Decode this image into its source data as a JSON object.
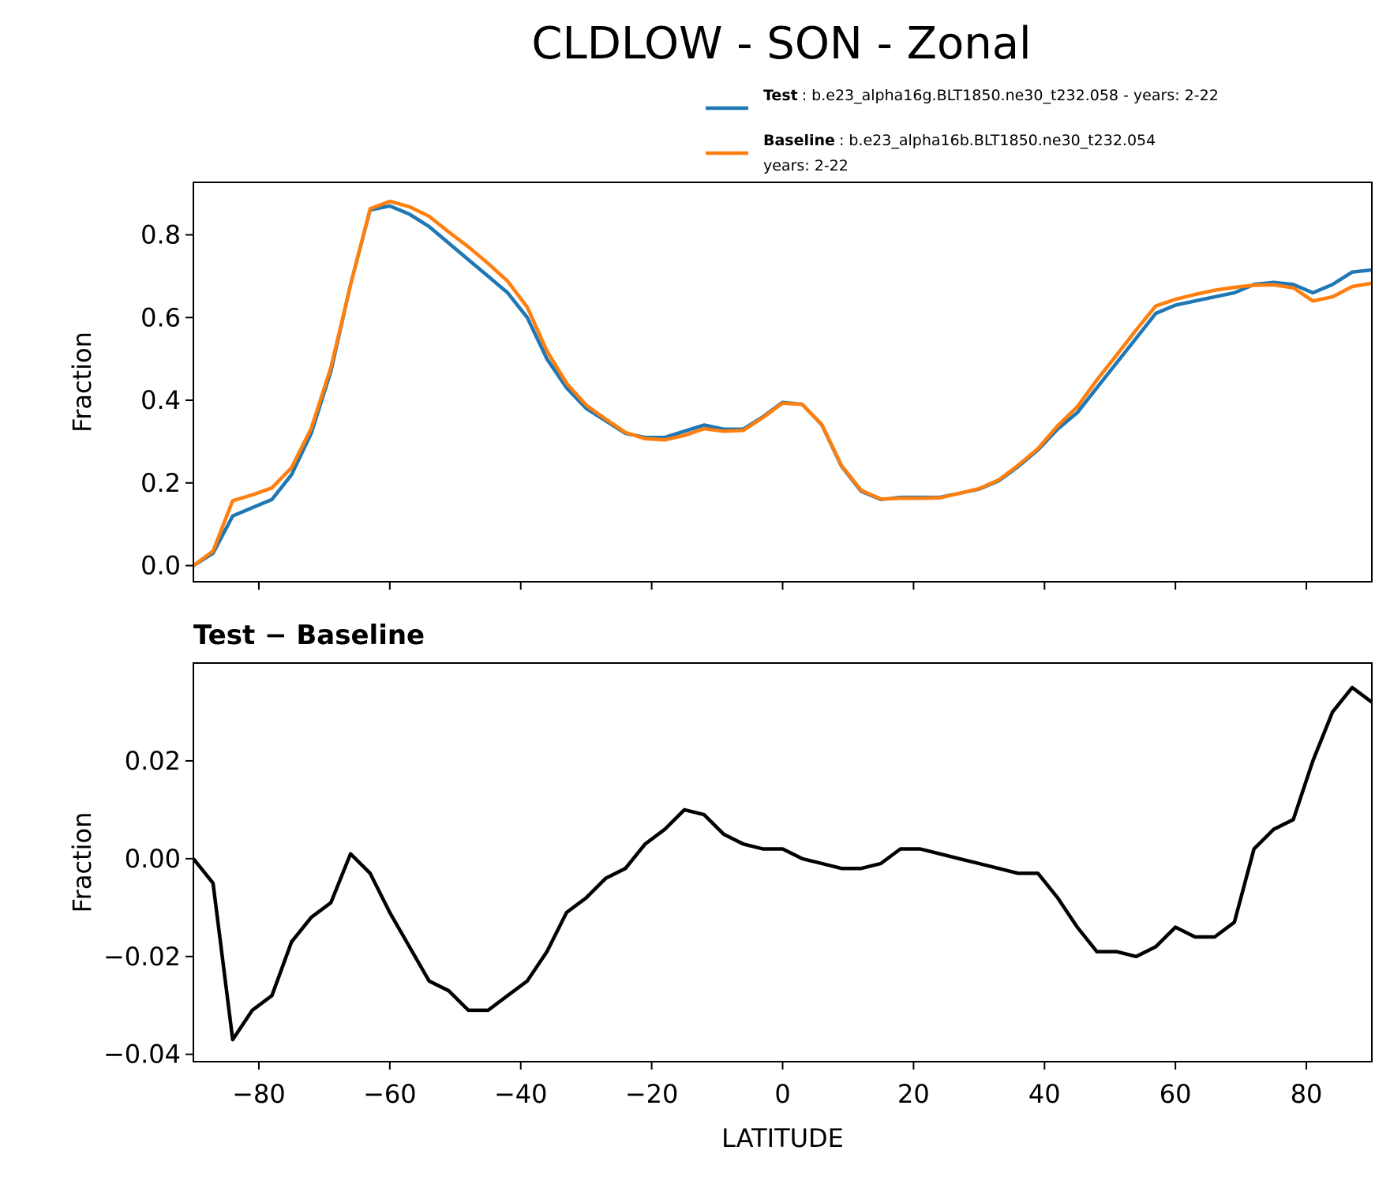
{
  "title": "CLDLOW - SON - Zonal",
  "chart_data": [
    {
      "type": "line",
      "ylabel": "Fraction",
      "show_xtick_labels": false,
      "x": [
        -90,
        -87,
        -84,
        -81,
        -78,
        -75,
        -72,
        -69,
        -66,
        -63,
        -60,
        -57,
        -54,
        -51,
        -48,
        -45,
        -42,
        -39,
        -36,
        -33,
        -30,
        -27,
        -24,
        -21,
        -18,
        -15,
        -12,
        -9,
        -6,
        -3,
        0,
        3,
        6,
        9,
        12,
        15,
        18,
        21,
        24,
        27,
        30,
        33,
        36,
        39,
        42,
        45,
        48,
        51,
        54,
        57,
        60,
        63,
        66,
        69,
        72,
        75,
        78,
        81,
        84,
        87,
        90
      ],
      "series": [
        {
          "name": "Test",
          "legend_lines": [
            ": b.e23_alpha16g.BLT1850.ne30_t232.058 - years: 2-22"
          ],
          "color": "#1f77b4",
          "values": [
            0.0,
            0.03,
            0.12,
            0.14,
            0.16,
            0.22,
            0.32,
            0.47,
            0.68,
            0.86,
            0.87,
            0.85,
            0.82,
            0.78,
            0.74,
            0.7,
            0.66,
            0.6,
            0.5,
            0.43,
            0.38,
            0.35,
            0.32,
            0.31,
            0.31,
            0.325,
            0.34,
            0.33,
            0.33,
            0.36,
            0.395,
            0.39,
            0.34,
            0.24,
            0.18,
            0.16,
            0.165,
            0.165,
            0.165,
            0.175,
            0.185,
            0.205,
            0.24,
            0.28,
            0.33,
            0.37,
            0.43,
            0.49,
            0.55,
            0.61,
            0.63,
            0.64,
            0.65,
            0.66,
            0.68,
            0.685,
            0.68,
            0.66,
            0.68,
            0.71,
            0.715
          ]
        },
        {
          "name": "Baseline",
          "legend_lines": [
            ": b.e23_alpha16b.BLT1850.ne30_t232.054",
            "years: 2-22"
          ],
          "color": "#ff7f0e",
          "values": [
            0.0,
            0.035,
            0.157,
            0.171,
            0.188,
            0.237,
            0.332,
            0.479,
            0.679,
            0.863,
            0.881,
            0.868,
            0.845,
            0.807,
            0.771,
            0.731,
            0.688,
            0.625,
            0.519,
            0.441,
            0.388,
            0.354,
            0.322,
            0.307,
            0.304,
            0.315,
            0.331,
            0.325,
            0.327,
            0.358,
            0.393,
            0.39,
            0.341,
            0.242,
            0.182,
            0.161,
            0.163,
            0.163,
            0.164,
            0.175,
            0.186,
            0.207,
            0.243,
            0.283,
            0.338,
            0.384,
            0.449,
            0.509,
            0.57,
            0.628,
            0.644,
            0.656,
            0.666,
            0.673,
            0.678,
            0.679,
            0.672,
            0.64,
            0.65,
            0.675,
            0.683
          ]
        }
      ],
      "xlim": [
        -90,
        90
      ],
      "xticks": [
        -80,
        -60,
        -40,
        -20,
        0,
        20,
        40,
        60,
        80
      ],
      "ylim": [
        -0.039,
        0.927
      ],
      "yticks": [
        {
          "value": 0,
          "label": "0.0"
        },
        0.2,
        0.4,
        0.6,
        0.8
      ],
      "legend": "upper right"
    },
    {
      "type": "line",
      "title": "Test − Baseline",
      "ylabel": "Fraction",
      "xlabel": "LATITUDE",
      "show_xtick_labels": true,
      "x": [
        -90,
        -87,
        -84,
        -81,
        -78,
        -75,
        -72,
        -69,
        -66,
        -63,
        -60,
        -57,
        -54,
        -51,
        -48,
        -45,
        -42,
        -39,
        -36,
        -33,
        -30,
        -27,
        -24,
        -21,
        -18,
        -15,
        -12,
        -9,
        -6,
        -3,
        0,
        3,
        6,
        9,
        12,
        15,
        18,
        21,
        24,
        27,
        30,
        33,
        36,
        39,
        42,
        45,
        48,
        51,
        54,
        57,
        60,
        63,
        66,
        69,
        72,
        75,
        78,
        81,
        84,
        87,
        90
      ],
      "series": [
        {
          "color": "#000000",
          "values": [
            0.0,
            -0.005,
            -0.037,
            -0.031,
            -0.028,
            -0.017,
            -0.012,
            -0.009,
            0.001,
            -0.003,
            -0.011,
            -0.018,
            -0.025,
            -0.027,
            -0.031,
            -0.031,
            -0.028,
            -0.025,
            -0.019,
            -0.011,
            -0.008,
            -0.004,
            -0.002,
            0.003,
            0.006,
            0.01,
            0.009,
            0.005,
            0.003,
            0.002,
            0.002,
            0.0,
            -0.001,
            -0.002,
            -0.002,
            -0.001,
            0.002,
            0.002,
            0.001,
            0.0,
            -0.001,
            -0.002,
            -0.003,
            -0.003,
            -0.008,
            -0.014,
            -0.019,
            -0.019,
            -0.02,
            -0.018,
            -0.014,
            -0.016,
            -0.016,
            -0.013,
            0.002,
            0.006,
            0.008,
            0.02,
            0.03,
            0.035,
            0.032
          ]
        }
      ],
      "xlim": [
        -90,
        90
      ],
      "xticks": [
        {
          "value": -80,
          "label": "−80"
        },
        {
          "value": -60,
          "label": "−60"
        },
        {
          "value": -40,
          "label": "−40"
        },
        {
          "value": -20,
          "label": "−20"
        },
        0,
        20,
        40,
        60,
        80
      ],
      "ylim": [
        -0.0415,
        0.04
      ],
      "yticks": [
        {
          "value": -0.04,
          "label": "−0.04"
        },
        {
          "value": -0.02,
          "label": "−0.02"
        },
        {
          "value": 0,
          "label": "0.00"
        },
        0.02
      ]
    }
  ]
}
